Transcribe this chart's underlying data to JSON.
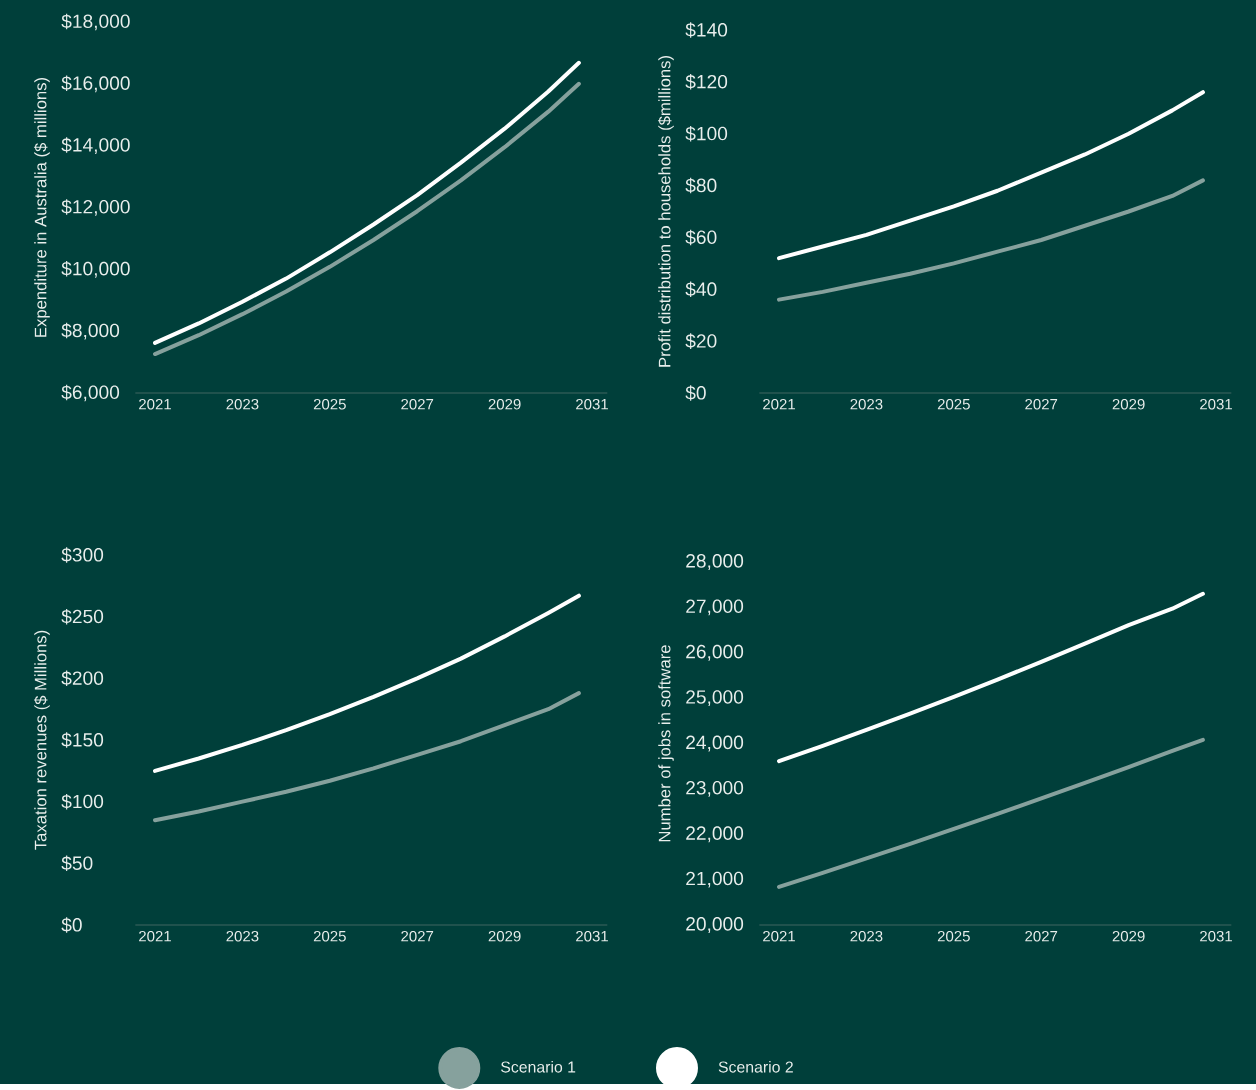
{
  "chart_data": [
    {
      "type": "line",
      "ylabel": "Expenditure in Australia ($ millions)",
      "x": [
        2021,
        2022,
        2023,
        2024,
        2025,
        2026,
        2027,
        2028,
        2029,
        2030,
        2030.7
      ],
      "xlim": [
        2020.55,
        2031.35
      ],
      "xticks": [
        2021,
        2023,
        2025,
        2027,
        2029,
        2031
      ],
      "ylim": [
        6000,
        18000
      ],
      "yticks": [
        {
          "value": 6000,
          "label": "$6,000"
        },
        {
          "value": 8000,
          "label": "$8,000"
        },
        {
          "value": 10000,
          "label": "$10,000"
        },
        {
          "value": 12000,
          "label": "$12,000"
        },
        {
          "value": 14000,
          "label": "$14,000"
        },
        {
          "value": 16000,
          "label": "$16,000"
        },
        {
          "value": 18000,
          "label": "$18,000"
        }
      ],
      "series": [
        {
          "color": "#86a19d",
          "values": [
            7260,
            7870,
            8550,
            9280,
            10080,
            10950,
            11880,
            12880,
            13950,
            15100,
            16000
          ]
        },
        {
          "color": "#ffffff",
          "values": [
            7620,
            8250,
            8950,
            9700,
            10550,
            11450,
            12400,
            13450,
            14550,
            15750,
            16680
          ]
        }
      ]
    },
    {
      "type": "line",
      "ylabel": "Profit distribution to households ($millions)",
      "x": [
        2021,
        2022,
        2023,
        2024,
        2025,
        2026,
        2027,
        2028,
        2029,
        2030,
        2030.7
      ],
      "xlim": [
        2020.55,
        2031.35
      ],
      "xticks": [
        2021,
        2023,
        2025,
        2027,
        2029,
        2031
      ],
      "ylim": [
        0,
        140
      ],
      "yticks": [
        {
          "value": 0,
          "label": "$0"
        },
        {
          "value": 20,
          "label": "$20"
        },
        {
          "value": 40,
          "label": "$40"
        },
        {
          "value": 60,
          "label": "$60"
        },
        {
          "value": 80,
          "label": "$80"
        },
        {
          "value": 100,
          "label": "$100"
        },
        {
          "value": 120,
          "label": "$120"
        },
        {
          "value": 140,
          "label": "$140"
        }
      ],
      "series": [
        {
          "color": "#86a19d",
          "values": [
            36,
            39,
            42.5,
            46,
            50,
            54.5,
            59,
            64.5,
            70,
            76,
            82
          ]
        },
        {
          "color": "#ffffff",
          "values": [
            52,
            56.5,
            61,
            66.5,
            72,
            78,
            85,
            92,
            100,
            109,
            116
          ]
        }
      ]
    },
    {
      "type": "line",
      "ylabel": "Taxation revenues ($ Millions)",
      "x": [
        2021,
        2022,
        2023,
        2024,
        2025,
        2026,
        2027,
        2028,
        2029,
        2030,
        2030.7
      ],
      "xlim": [
        2020.55,
        2031.35
      ],
      "xticks": [
        2021,
        2023,
        2025,
        2027,
        2029,
        2031
      ],
      "ylim": [
        0,
        300
      ],
      "yticks": [
        {
          "value": 0,
          "label": "$0"
        },
        {
          "value": 50,
          "label": "$50"
        },
        {
          "value": 100,
          "label": "$100"
        },
        {
          "value": 150,
          "label": "$150"
        },
        {
          "value": 200,
          "label": "$200"
        },
        {
          "value": 250,
          "label": "$250"
        },
        {
          "value": 300,
          "label": "$300"
        }
      ],
      "series": [
        {
          "color": "#86a19d",
          "values": [
            85,
            92,
            100,
            108,
            117,
            127,
            138,
            149,
            162,
            175,
            188
          ]
        },
        {
          "color": "#ffffff",
          "values": [
            125,
            135,
            146,
            158,
            171,
            185,
            200,
            216,
            234,
            253,
            267
          ]
        }
      ]
    },
    {
      "type": "line",
      "ylabel": "Number of jobs in software",
      "x": [
        2021,
        2022,
        2023,
        2024,
        2025,
        2026,
        2027,
        2028,
        2029,
        2030,
        2030.7
      ],
      "xlim": [
        2020.55,
        2031.35
      ],
      "xticks": [
        2021,
        2023,
        2025,
        2027,
        2029,
        2031
      ],
      "ylim": [
        20000,
        28000
      ],
      "yticks": [
        {
          "value": 20000,
          "label": "20,000"
        },
        {
          "value": 21000,
          "label": "21,000"
        },
        {
          "value": 22000,
          "label": "22,000"
        },
        {
          "value": 23000,
          "label": "23,000"
        },
        {
          "value": 24000,
          "label": "24,000"
        },
        {
          "value": 25000,
          "label": "25,000"
        },
        {
          "value": 26000,
          "label": "26,000"
        },
        {
          "value": 27000,
          "label": "27,000"
        },
        {
          "value": 28000,
          "label": "28,000"
        }
      ],
      "legend": "bottom",
      "series": [
        {
          "name": "Scenario 1",
          "color": "#86a19d",
          "values": [
            20840,
            21150,
            21470,
            21790,
            22120,
            22450,
            22790,
            23130,
            23480,
            23840,
            24080
          ]
        },
        {
          "name": "Scenario 2",
          "color": "#ffffff",
          "values": [
            23610,
            23950,
            24300,
            24660,
            25030,
            25410,
            25800,
            26200,
            26610,
            26970,
            27300
          ]
        }
      ]
    }
  ]
}
